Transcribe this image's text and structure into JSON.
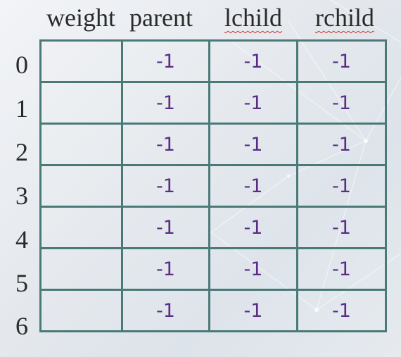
{
  "headers": {
    "weight": "weight",
    "parent": "parent",
    "lchild": "lchild",
    "rchild": "rchild"
  },
  "rows": [
    {
      "index": "0",
      "weight": "",
      "parent": "-1",
      "lchild": "-1",
      "rchild": "-1"
    },
    {
      "index": "1",
      "weight": "",
      "parent": "-1",
      "lchild": "-1",
      "rchild": "-1"
    },
    {
      "index": "2",
      "weight": "",
      "parent": "-1",
      "lchild": "-1",
      "rchild": "-1"
    },
    {
      "index": "3",
      "weight": "",
      "parent": "-1",
      "lchild": "-1",
      "rchild": "-1"
    },
    {
      "index": "4",
      "weight": "",
      "parent": "-1",
      "lchild": "-1",
      "rchild": "-1"
    },
    {
      "index": "5",
      "weight": "",
      "parent": "-1",
      "lchild": "-1",
      "rchild": "-1"
    },
    {
      "index": "6",
      "weight": "",
      "parent": "-1",
      "lchild": "-1",
      "rchild": "-1"
    }
  ],
  "colors": {
    "grid_border": "#4a7a78",
    "cell_value_text": "#5a2c86",
    "header_text": "#2a2a2a",
    "spellcheck_underline": "#d03030"
  }
}
